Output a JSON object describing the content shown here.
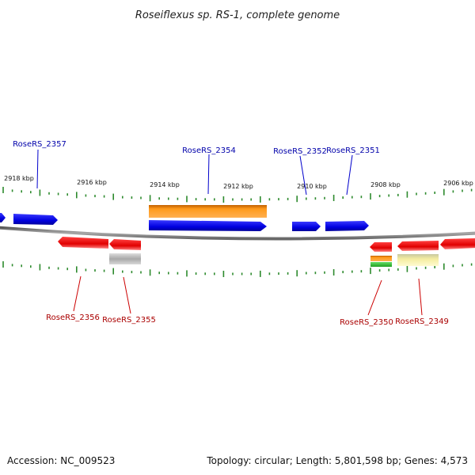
{
  "title": "Roseiflexus sp. RS-1, complete genome",
  "footer": {
    "accession": "Accession: NC_009523",
    "summary": "Topology: circular; Length: 5,801,598 bp; Genes: 4,573"
  },
  "colors": {
    "forward_gene": "#0000ee",
    "reverse_gene": "#ee0000",
    "rna": "#ff9a1a",
    "pseudo": "#aaaaaa",
    "tick": "#2d8a2d",
    "backbone": "#888888"
  },
  "scale_labels": [
    "2918 kbp",
    "2916 kbp",
    "2914 kbp",
    "2912 kbp",
    "2910 kbp",
    "2908 kbp",
    "2906 kbp"
  ],
  "labels_forward": [
    "RoseRS_2357",
    "RoseRS_2354",
    "RoseRS_2352",
    "RoseRS_2351"
  ],
  "labels_reverse": [
    "RoseRS_2356",
    "RoseRS_2355",
    "RoseRS_2350",
    "RoseRS_2349"
  ]
}
